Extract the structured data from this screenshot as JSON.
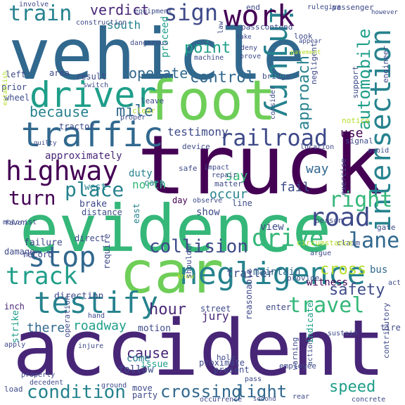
{
  "palette": {
    "dark_purple": "#440154",
    "purple": "#482677",
    "indigo": "#3e4a89",
    "blue": "#31688e",
    "teal": "#26828e",
    "cyan_green": "#1f9e89",
    "green": "#35b779",
    "lime": "#6ece58",
    "yellow_green": "#b5de2b",
    "yellow": "#fde725"
  },
  "words": [
    {
      "text": "vehicle",
      "color": "#31688e",
      "rotation": 0
    },
    {
      "text": "foot",
      "color": "#6ece58",
      "rotation": 0
    },
    {
      "text": "truck",
      "color": "#440154",
      "rotation": 0
    },
    {
      "text": "evidence",
      "color": "#35b779",
      "rotation": 0
    },
    {
      "text": "car",
      "color": "#6ece58",
      "rotation": 0
    },
    {
      "text": "accident",
      "color": "#482677",
      "rotation": 0
    },
    {
      "text": "driver",
      "color": "#1f9e89",
      "rotation": 0
    },
    {
      "text": "traffic",
      "color": "#31688e",
      "rotation": 0
    },
    {
      "text": "highway",
      "color": "#440154",
      "rotation": 0
    },
    {
      "text": "negligence",
      "color": "#26828e",
      "rotation": 0
    },
    {
      "text": "testify",
      "color": "#26828e",
      "rotation": 0
    },
    {
      "text": "injury",
      "color": "#26828e",
      "rotation": 90
    },
    {
      "text": "intersection",
      "color": "#26828e",
      "rotation": -90
    },
    {
      "text": "work",
      "color": "#440154",
      "rotation": 0
    },
    {
      "text": "train",
      "color": "#26828e",
      "rotation": 0
    },
    {
      "text": "sign",
      "color": "#3e4a89",
      "rotation": 0
    },
    {
      "text": "railroad",
      "color": "#3e4a89",
      "rotation": 0
    },
    {
      "text": "stop",
      "color": "#31688e",
      "rotation": 0
    },
    {
      "text": "track",
      "color": "#1f9e89",
      "rotation": 0
    },
    {
      "text": "road",
      "color": "#3e4a89",
      "rotation": 0
    },
    {
      "text": "drive",
      "color": "#35b779",
      "rotation": 0
    },
    {
      "text": "right",
      "color": "#35b779",
      "rotation": 0
    },
    {
      "text": "lane",
      "color": "#31688e",
      "rotation": 0
    },
    {
      "text": "collision",
      "color": "#3e4a89",
      "rotation": 0
    },
    {
      "text": "place",
      "color": "#26828e",
      "rotation": 0
    },
    {
      "text": "turn",
      "color": "#440154",
      "rotation": 0
    },
    {
      "text": "travel",
      "color": "#35b779",
      "rotation": 0
    },
    {
      "text": "control",
      "color": "#31688e",
      "rotation": 0
    },
    {
      "text": "because",
      "color": "#26828e",
      "rotation": 0
    },
    {
      "text": "mile",
      "color": "#31688e",
      "rotation": 0
    },
    {
      "text": "automobile",
      "color": "#1f9e89",
      "rotation": -90
    },
    {
      "text": "approach",
      "color": "#26828e",
      "rotation": -90
    },
    {
      "text": "point",
      "color": "#1f9e89",
      "rotation": 0
    },
    {
      "text": "operate",
      "color": "#31688e",
      "rotation": 0
    },
    {
      "text": "verdict",
      "color": "#482677",
      "rotation": 0
    },
    {
      "text": "hour",
      "color": "#482677",
      "rotation": 0
    },
    {
      "text": "cross",
      "color": "#b5de2b",
      "rotation": 0
    },
    {
      "text": "safety",
      "color": "#3e4a89",
      "rotation": 0
    },
    {
      "text": "speed",
      "color": "#1f9e89",
      "rotation": 0
    },
    {
      "text": "condition",
      "color": "#26828e",
      "rotation": 0
    },
    {
      "text": "crossing",
      "color": "#31688e",
      "rotation": 0
    },
    {
      "text": "light",
      "color": "#31688e",
      "rotation": 0
    },
    {
      "text": "cause",
      "color": "#482677",
      "rotation": 0
    },
    {
      "text": "roadway",
      "color": "#1f9e89",
      "rotation": 0
    },
    {
      "text": "there",
      "color": "#31688e",
      "rotation": 0
    },
    {
      "text": "testimony",
      "color": "#3e4a89",
      "rotation": 0
    },
    {
      "text": "south",
      "color": "#26828e",
      "rotation": 0
    },
    {
      "text": "say",
      "color": "#35b779",
      "rotation": 0
    },
    {
      "text": "occur",
      "color": "#26828e",
      "rotation": 0
    },
    {
      "text": "north",
      "color": "#35b779",
      "rotation": 0
    },
    {
      "text": "fail",
      "color": "#3e4a89",
      "rotation": 0
    },
    {
      "text": "way",
      "color": "#31688e",
      "rotation": 0
    },
    {
      "text": "use",
      "color": "#440154",
      "rotation": 0
    },
    {
      "text": "come",
      "color": "#26828e",
      "rotation": 0
    },
    {
      "text": "follow",
      "color": "#3e4a89",
      "rotation": 0
    },
    {
      "text": "jury",
      "color": "#482677",
      "rotation": 0
    },
    {
      "text": "approximately",
      "color": "#482677",
      "rotation": 0
    },
    {
      "text": "proceed",
      "color": "#1f9e89",
      "rotation": -90
    },
    {
      "text": "trailer",
      "color": "#3e4a89",
      "rotation": 0
    },
    {
      "text": "maintain",
      "color": "#31688e",
      "rotation": 0
    },
    {
      "text": "witness",
      "color": "#440154",
      "rotation": 0
    },
    {
      "text": "bus",
      "color": "#31688e",
      "rotation": 0
    },
    {
      "text": "view",
      "color": "#3e4a89",
      "rotation": 0
    },
    {
      "text": "duty",
      "color": "#26828e",
      "rotation": 0
    },
    {
      "text": "show",
      "color": "#3e4a89",
      "rotation": 0
    },
    {
      "text": "care",
      "color": "#26828e",
      "rotation": 0
    },
    {
      "text": "day",
      "color": "#440154",
      "rotation": 0
    },
    {
      "text": "line",
      "color": "#3e4a89",
      "rotation": 0
    },
    {
      "text": "east",
      "color": "#26828e",
      "rotation": -90
    },
    {
      "text": "west",
      "color": "#26828e",
      "rotation": 0
    },
    {
      "text": "brake",
      "color": "#3e4a89",
      "rotation": 0
    },
    {
      "text": "distance",
      "color": "#3e4a89",
      "rotation": 0
    },
    {
      "text": "direction",
      "color": "#3e4a89",
      "rotation": 0
    },
    {
      "text": "direct",
      "color": "#3e4a89",
      "rotation": 0
    },
    {
      "text": "require",
      "color": "#3e4a89",
      "rotation": -90
    },
    {
      "text": "failure",
      "color": "#3e4a89",
      "rotation": 0
    },
    {
      "text": "record",
      "color": "#3e4a89",
      "rotation": 0
    },
    {
      "text": "damage",
      "color": "#3e4a89",
      "rotation": 0
    },
    {
      "text": "inch",
      "color": "#482677",
      "rotation": 0
    },
    {
      "text": "strike",
      "color": "#1f9e89",
      "rotation": -90
    },
    {
      "text": "motion",
      "color": "#3e4a89",
      "rotation": 0
    },
    {
      "text": "issue",
      "color": "#1f9e89",
      "rotation": 0
    },
    {
      "text": "street",
      "color": "#3e4a89",
      "rotation": 0
    },
    {
      "text": "enter",
      "color": "#3e4a89",
      "rotation": 0
    },
    {
      "text": "tire",
      "color": "#3e4a89",
      "rotation": 0
    },
    {
      "text": "proximate",
      "color": "#3e4a89",
      "rotation": 0
    },
    {
      "text": "present",
      "color": "#3e4a89",
      "rotation": 0
    },
    {
      "text": "reasonable",
      "color": "#3e4a89",
      "rotation": -90
    },
    {
      "text": "indicate",
      "color": "#1f9e89",
      "rotation": -90
    },
    {
      "text": "exercise",
      "color": "#3e4a89",
      "rotation": -90
    },
    {
      "text": "claim",
      "color": "#3e4a89",
      "rotation": 0
    },
    {
      "text": "person",
      "color": "#3e4a89",
      "rotation": 0
    },
    {
      "text": "gate",
      "color": "#3e4a89",
      "rotation": 0
    },
    {
      "text": "signal",
      "color": "#3e4a89",
      "rotation": 0
    },
    {
      "text": "notice",
      "color": "#b5de2b",
      "rotation": 0
    },
    {
      "text": "support",
      "color": "#3e4a89",
      "rotation": -90
    },
    {
      "text": "engineer",
      "color": "#3e4a89",
      "rotation": -90
    },
    {
      "text": "passenger",
      "color": "#3e4a89",
      "rotation": 0
    },
    {
      "text": "negligent",
      "color": "#3e4a89",
      "rotation": -90
    },
    {
      "text": "bridge",
      "color": "#3e4a89",
      "rotation": 0
    },
    {
      "text": "pass",
      "color": "#3e4a89",
      "rotation": 0
    },
    {
      "text": "contend",
      "color": "#3e4a89",
      "rotation": 0
    },
    {
      "text": "end",
      "color": "#3e4a89",
      "rotation": 0
    },
    {
      "text": "look",
      "color": "#3e4a89",
      "rotation": 0
    },
    {
      "text": "deny",
      "color": "#3e4a89",
      "rotation": 0
    },
    {
      "text": "prove",
      "color": "#3e4a89",
      "rotation": 0
    },
    {
      "text": "machine",
      "color": "#3e4a89",
      "rotation": 0
    },
    {
      "text": "law",
      "color": "#3e4a89",
      "rotation": -90
    },
    {
      "text": "left",
      "color": "#3e4a89",
      "rotation": 0
    },
    {
      "text": "area",
      "color": "#3e4a89",
      "rotation": 0
    },
    {
      "text": "result",
      "color": "#3e4a89",
      "rotation": 0
    },
    {
      "text": "prior",
      "color": "#3e4a89",
      "rotation": 0
    },
    {
      "text": "wheel",
      "color": "#3e4a89",
      "rotation": 0
    },
    {
      "text": "switch",
      "color": "#3e4a89",
      "rotation": 0
    },
    {
      "text": "tractor",
      "color": "#3e4a89",
      "rotation": 0
    },
    {
      "text": "clear",
      "color": "#b5de2b",
      "rotation": 0
    },
    {
      "text": "proper",
      "color": "#3e4a89",
      "rotation": 0
    },
    {
      "text": "leave",
      "color": "#3e4a89",
      "rotation": 0
    },
    {
      "text": "device",
      "color": "#3e4a89",
      "rotation": 0
    },
    {
      "text": "safe",
      "color": "#3e4a89",
      "rotation": 0
    },
    {
      "text": "impact",
      "color": "#3e4a89",
      "rotation": 0
    },
    {
      "text": "repair",
      "color": "#3e4a89",
      "rotation": 0
    },
    {
      "text": "matter",
      "color": "#3e4a89",
      "rotation": 0
    },
    {
      "text": "observe",
      "color": "#3e4a89",
      "rotation": 0
    },
    {
      "text": "provide",
      "color": "#3e4a89",
      "rotation": 0
    },
    {
      "text": "know",
      "color": "#b5de2b",
      "rotation": 0
    },
    {
      "text": "shoulder",
      "color": "#3e4a89",
      "rotation": -90
    },
    {
      "text": "hand",
      "color": "#3e4a89",
      "rotation": 0
    },
    {
      "text": "operation",
      "color": "#3e4a89",
      "rotation": -90
    },
    {
      "text": "injure",
      "color": "#3e4a89",
      "rotation": 0
    },
    {
      "text": "move",
      "color": "#3e4a89",
      "rotation": 0
    },
    {
      "text": "party",
      "color": "#3e4a89",
      "rotation": 0
    },
    {
      "text": "load",
      "color": "#3e4a89",
      "rotation": 0
    },
    {
      "text": "hole",
      "color": "#3e4a89",
      "rotation": 0
    },
    {
      "text": "employee",
      "color": "#3e4a89",
      "rotation": 0
    },
    {
      "text": "sustain",
      "color": "#3e4a89",
      "rotation": 0
    },
    {
      "text": "warning",
      "color": "#3e4a89",
      "rotation": -90
    },
    {
      "text": "action",
      "color": "#3e4a89",
      "rotation": -90
    },
    {
      "text": "contributory",
      "color": "#3e4a89",
      "rotation": -90
    },
    {
      "text": "concrete",
      "color": "#3e4a89",
      "rotation": 0
    },
    {
      "text": "rear",
      "color": "#3e4a89",
      "rotation": 0
    },
    {
      "text": "pass",
      "color": "#3e4a89",
      "rotation": 0
    },
    {
      "text": "involve",
      "color": "#3e4a89",
      "rotation": 0
    },
    {
      "text": "dangerous",
      "color": "#3e4a89",
      "rotation": 0
    },
    {
      "text": "construction",
      "color": "#3e4a89",
      "rotation": 0
    },
    {
      "text": "equipment",
      "color": "#3e4a89",
      "rotation": 0
    },
    {
      "text": "rulegive",
      "color": "#3e4a89",
      "rotation": 0
    },
    {
      "text": "however",
      "color": "#3e4a89",
      "rotation": 0
    },
    {
      "text": "take",
      "color": "#3e4a89",
      "rotation": 0
    },
    {
      "text": "appear",
      "color": "#3e4a89",
      "rotation": 0
    },
    {
      "text": "pavement",
      "color": "#b5de2b",
      "rotation": 0
    },
    {
      "text": "motorist",
      "color": "#3e4a89",
      "rotation": 0
    },
    {
      "text": "favor",
      "color": "#3e4a89",
      "rotation": 0
    },
    {
      "text": "guilty",
      "color": "#3e4a89",
      "rotation": 0
    },
    {
      "text": "establish",
      "color": "#b5de2b",
      "rotation": -90
    },
    {
      "text": "consider",
      "color": "#3e4a89",
      "rotation": -90
    },
    {
      "text": "location",
      "color": "#3e4a89",
      "rotation": 0
    },
    {
      "text": "avoid",
      "color": "#3e4a89",
      "rotation": 0
    },
    {
      "text": "argue",
      "color": "#3e4a89",
      "rotation": 0
    },
    {
      "text": "act",
      "color": "#3e4a89",
      "rotation": 0
    },
    {
      "text": "circumstance",
      "color": "#b5de2b",
      "rotation": 0
    },
    {
      "text": "apply",
      "color": "#3e4a89",
      "rotation": 0
    },
    {
      "text": "properly",
      "color": "#3e4a89",
      "rotation": 0
    },
    {
      "text": "decedent",
      "color": "#3e4a89",
      "rotation": 0
    },
    {
      "text": "ground",
      "color": "#3e4a89",
      "rotation": 0
    },
    {
      "text": "occurrence",
      "color": "#3e4a89",
      "rotation": 0
    },
    {
      "text": "second",
      "color": "#3e4a89",
      "rotation": 0
    }
  ]
}
